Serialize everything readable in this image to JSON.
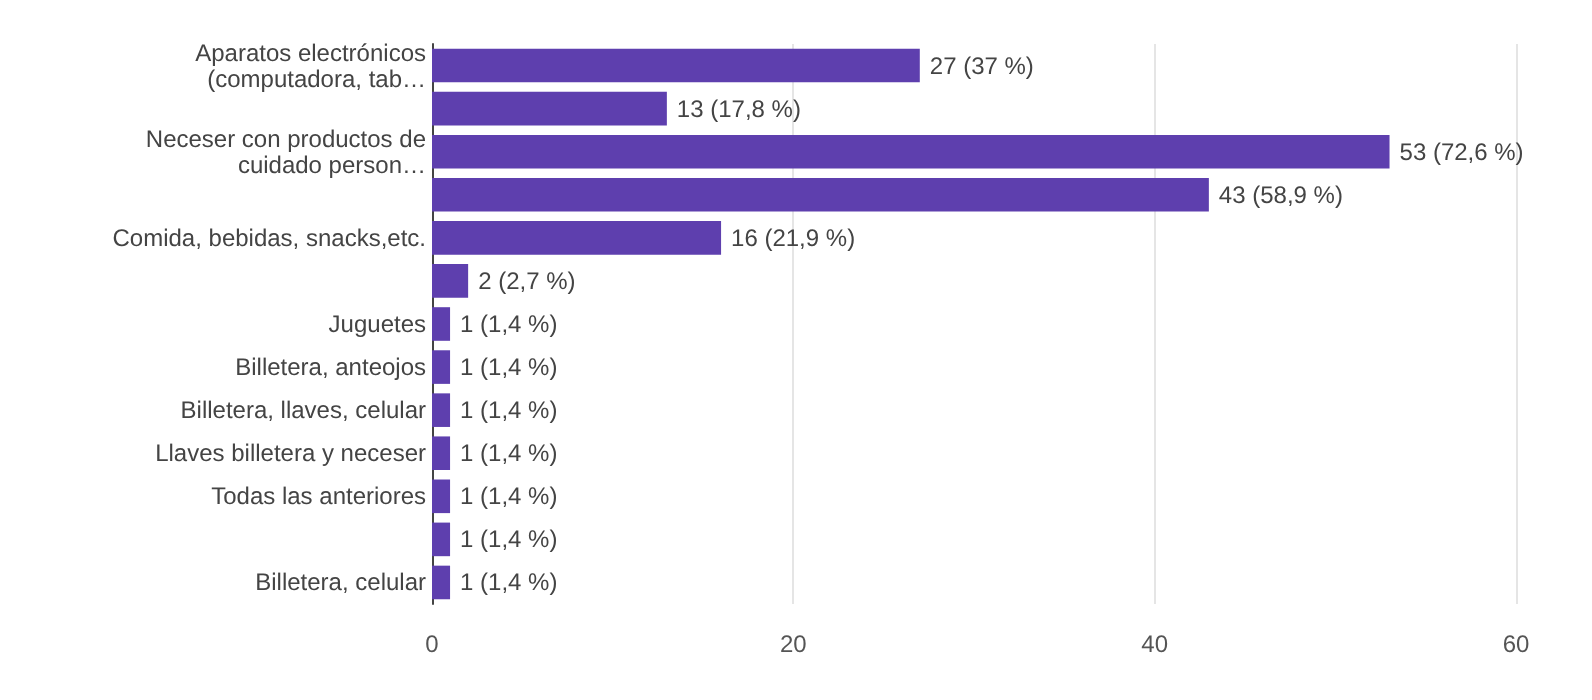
{
  "chart_data": {
    "type": "bar",
    "orientation": "horizontal",
    "categories": [
      "Aparatos electrónicos\n(computadora, tab…",
      null,
      "Neceser con productos de\ncuidado person…",
      null,
      "Comida, bebidas, snacks,etc.",
      null,
      "Juguetes",
      "Billetera, anteojos",
      "Billetera, llaves, celular",
      "Llaves billetera y neceser",
      "Todas las anteriores",
      null,
      "Billetera, celular"
    ],
    "values": [
      27,
      13,
      53,
      43,
      16,
      2,
      1,
      1,
      1,
      1,
      1,
      1,
      1
    ],
    "value_labels": [
      "27 (37 %)",
      "13 (17,8 %)",
      "53 (72,6 %)",
      "43 (58,9 %)",
      "16 (21,9 %)",
      "2 (2,7 %)",
      "1 (1,4 %)",
      "1 (1,4 %)",
      "1 (1,4 %)",
      "1 (1,4 %)",
      "1 (1,4 %)",
      "1 (1,4 %)",
      "1 (1,4 %)"
    ],
    "color": "#5e3fae",
    "xlim": [
      0,
      60
    ],
    "xticks": [
      0,
      20,
      40,
      60
    ],
    "grid": "x"
  }
}
